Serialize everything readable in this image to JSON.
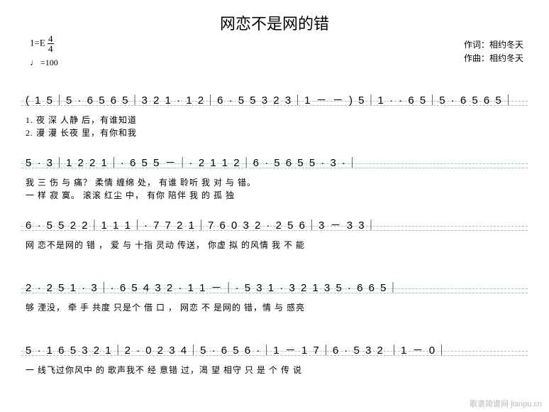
{
  "title": "网恋不是网的错",
  "meta": {
    "key_label": "1=E",
    "timesig_num": "4",
    "timesig_den": "4",
    "tempo_symbol": "♩",
    "tempo_val": "=100",
    "lyricist_label": "作词：",
    "lyricist": "相约冬天",
    "composer_label": "作曲：",
    "composer": "相约冬天"
  },
  "lines": [
    {
      "notes": "( 1 5｜5 · 6 5 6 5｜3 2 1 ·   1 2｜6 · 5 5 3 2 3｜1  －  － ) 5｜1 · ·   6 5｜5 · 6 5 6 5｜",
      "lyrics1": "                                                                                      1. 夜        深        人静     后，有谁知道",
      "lyrics2": "                                                                                      2. 漫        漫        长夜     里，有你和我"
    },
    {
      "notes": "5 ·   3｜1  2    2 1｜·   6 5  5  －｜·   2 1   1 2｜6 ·  5    6  5    5 · 3 ·｜",
      "lyrics1": "我      三 伤  与 痛？   柔情        缠绵  处，      有谁    聆听  我    对      与  错。",
      "lyrics2": "一      样 寂    寞。    滚滚        红尘  中，      有你    陪伴  我    的      孤  独"
    },
    {
      "notes": "6 · 5 5 2 2｜1  1 1｜·   7 7   2 1｜7 6    0 3  2 ·   2 5 6｜3  －    3 3｜",
      "lyrics1": "网  恋不是网的  错 ， 爱 与      十指  灵动   传送，  你虚    拟 的风情    我        不  能",
      "lyrics2": ""
    },
    {
      "notes": "2 · 2 5    1  ·  3｜·   6 5 4 3 2 · 1   1  －｜·  5 3    1 · 3 2 1    3  5 · 6    6 5｜",
      "lyrics1": "够  湮没，    牵      手       共度 只是个  借      口 ，       网恋    不  是网的    错，情  与    感亮",
      "lyrics2": ""
    },
    {
      "notes": "5 · 1 6 5 3 2 1｜2 ·   0 2 3 4｜5 · 6 5   6  ·｜1  －   1 7｜6 ·  5 3 2  ｜1   －    0｜",
      "lyrics1": "一   线飞过你风中    的      歌声我不   经  意错    过，渴    望     相守   只     是 个  传       说",
      "lyrics2": ""
    }
  ],
  "watermark": "歌谱简谱网  jianpu.cn",
  "colors": {
    "guideline": "#3fa74a",
    "text": "#000000",
    "bg": "#ffffff",
    "watermark": "#b8b8b8"
  }
}
